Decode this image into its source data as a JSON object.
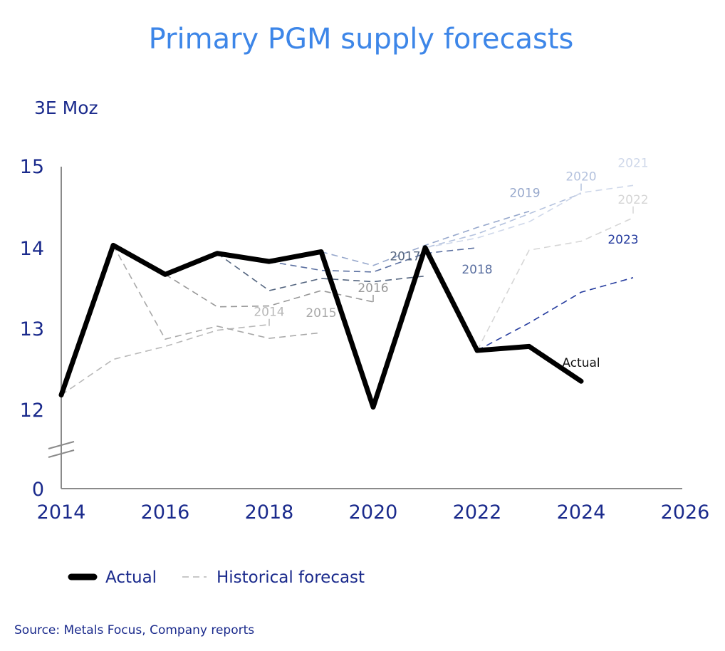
{
  "chart_data": {
    "type": "line",
    "title": "Primary PGM supply forecasts",
    "ylabel": "3E Moz",
    "y_axis_break": "between 0 and 12",
    "ylim": [
      12,
      15
    ],
    "y_ticks": [
      "15",
      "14",
      "13",
      "12",
      "0"
    ],
    "xlim": [
      2014,
      2026
    ],
    "x_ticks": [
      "2014",
      "2016",
      "2018",
      "2020",
      "2022",
      "2024",
      "2026"
    ],
    "colors": {
      "actual": "#000000",
      "axis": "#1a2a8c",
      "title": "#3d86e8"
    },
    "series": [
      {
        "name": "Actual",
        "label": "Actual",
        "color": "#000000",
        "dashed": false,
        "x": [
          2014,
          2015,
          2016,
          2017,
          2018,
          2019,
          2020,
          2021,
          2022,
          2023,
          2024
        ],
        "y": [
          12.18,
          14.03,
          13.67,
          13.93,
          13.83,
          13.95,
          12.03,
          14.0,
          12.73,
          12.78,
          12.35
        ]
      },
      {
        "name": "2014 forecast",
        "label": "2014",
        "color": "#b8b8b8",
        "dashed": true,
        "x": [
          2014,
          2015,
          2016,
          2017,
          2018
        ],
        "y": [
          12.18,
          12.62,
          12.78,
          12.98,
          13.05
        ]
      },
      {
        "name": "2015 forecast",
        "label": "2015",
        "color": "#a8a8a8",
        "dashed": true,
        "x": [
          2015,
          2016,
          2017,
          2018,
          2019
        ],
        "y": [
          14.03,
          12.87,
          13.03,
          12.88,
          12.95
        ]
      },
      {
        "name": "2016 forecast",
        "label": "2016",
        "color": "#989898",
        "dashed": true,
        "x": [
          2016,
          2017,
          2018,
          2019,
          2020
        ],
        "y": [
          13.67,
          13.27,
          13.28,
          13.47,
          13.33
        ]
      },
      {
        "name": "2017 forecast",
        "label": "2017",
        "color": "#556680",
        "dashed": true,
        "x": [
          2017,
          2018,
          2019,
          2020,
          2021
        ],
        "y": [
          13.93,
          13.47,
          13.62,
          13.58,
          13.65
        ]
      },
      {
        "name": "2018 forecast",
        "label": "2018",
        "color": "#5a6fa0",
        "dashed": true,
        "x": [
          2018,
          2019,
          2020,
          2021,
          2022
        ],
        "y": [
          13.83,
          13.72,
          13.7,
          13.93,
          14.0
        ]
      },
      {
        "name": "2019 forecast",
        "label": "2019",
        "color": "#97a8cc",
        "dashed": true,
        "x": [
          2019,
          2020,
          2021,
          2022,
          2023
        ],
        "y": [
          13.95,
          13.78,
          14.03,
          14.25,
          14.45
        ]
      },
      {
        "name": "2020 forecast",
        "label": "2020",
        "color": "#b4c2de",
        "dashed": true,
        "x": [
          2020,
          2021,
          2022,
          2023,
          2024
        ],
        "y": [
          12.03,
          14.0,
          14.17,
          14.42,
          14.67
        ]
      },
      {
        "name": "2021 forecast",
        "label": "2021",
        "color": "#cfd8ea",
        "dashed": true,
        "x": [
          2021,
          2022,
          2023,
          2024,
          2025
        ],
        "y": [
          14.0,
          14.12,
          14.32,
          14.68,
          14.77
        ]
      },
      {
        "name": "2022 forecast",
        "label": "2022",
        "color": "#d6d6d6",
        "dashed": true,
        "x": [
          2022,
          2023,
          2024,
          2025
        ],
        "y": [
          12.73,
          13.97,
          14.08,
          14.37
        ]
      },
      {
        "name": "2023 forecast",
        "label": "2023",
        "color": "#243b9e",
        "dashed": true,
        "x": [
          2022,
          2023,
          2024,
          2025
        ],
        "y": [
          12.73,
          13.07,
          13.45,
          13.63
        ]
      }
    ],
    "legend": {
      "placement": "bottom-left",
      "actual": "Actual",
      "historical": "Historical forecast"
    },
    "source": "Source: Metals Focus, Company reports"
  }
}
